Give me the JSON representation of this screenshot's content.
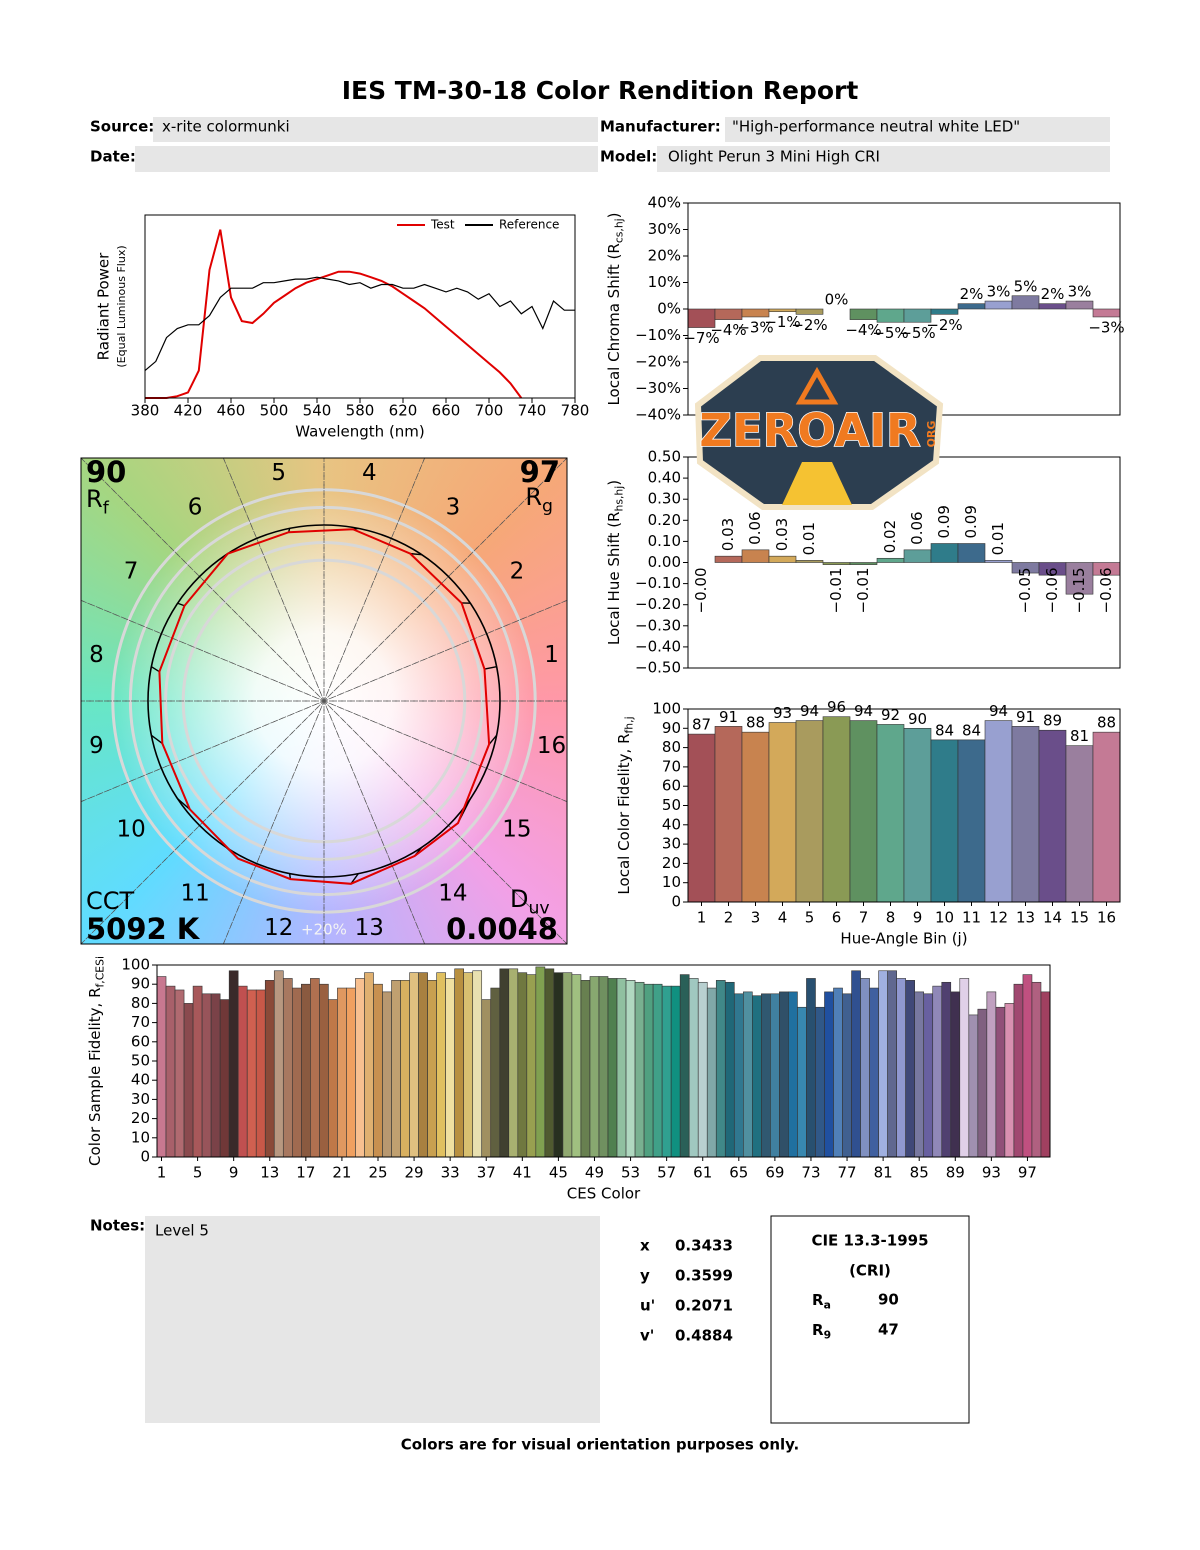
{
  "header": {
    "title": "IES TM-30-18 Color Rendition Report",
    "source_label": "Source:",
    "source": "x-rite colormunki",
    "manufacturer_label": "Manufacturer:",
    "manufacturer": "\"High-performance neutral white LED\"",
    "date_label": "Date:",
    "model_label": "Model:",
    "model": "Olight Perun 3 Mini High CRI"
  },
  "chart_data": [
    {
      "type": "line",
      "x_label": "Wavelength (nm)",
      "y_label": "Radiant Power",
      "y_sublabel": "(Equal Luminous Flux)",
      "x": [
        380,
        390,
        400,
        410,
        420,
        430,
        440,
        450,
        460,
        470,
        480,
        490,
        500,
        510,
        520,
        530,
        540,
        550,
        560,
        570,
        580,
        590,
        600,
        610,
        620,
        630,
        640,
        650,
        660,
        670,
        680,
        690,
        700,
        710,
        720,
        730,
        740,
        750,
        760,
        770,
        780
      ],
      "xlim": [
        380,
        780
      ],
      "xticks": [
        380,
        420,
        460,
        500,
        540,
        580,
        620,
        660,
        700,
        740,
        780
      ],
      "ylim": [
        0,
        1
      ],
      "legend": "upper right",
      "series": [
        {
          "name": "Test",
          "color": "#e00000",
          "values": [
            0,
            0,
            0,
            0.01,
            0.03,
            0.15,
            0.7,
            0.92,
            0.55,
            0.42,
            0.41,
            0.46,
            0.52,
            0.56,
            0.6,
            0.63,
            0.65,
            0.67,
            0.69,
            0.69,
            0.68,
            0.66,
            0.64,
            0.61,
            0.57,
            0.53,
            0.49,
            0.44,
            0.39,
            0.34,
            0.29,
            0.24,
            0.19,
            0.14,
            0.08,
            0,
            null,
            null,
            null,
            null,
            null
          ]
        },
        {
          "name": "Reference",
          "color": "#000000",
          "values": [
            0.15,
            0.2,
            0.33,
            0.38,
            0.4,
            0.4,
            0.45,
            0.55,
            0.6,
            0.6,
            0.6,
            0.63,
            0.63,
            0.64,
            0.65,
            0.65,
            0.66,
            0.65,
            0.64,
            0.62,
            0.63,
            0.6,
            0.62,
            0.62,
            0.6,
            0.6,
            0.62,
            0.6,
            0.58,
            0.6,
            0.58,
            0.54,
            0.57,
            0.5,
            0.53,
            0.46,
            0.5,
            0.38,
            0.53,
            0.48,
            0.48
          ]
        }
      ]
    },
    {
      "type": "color-vector",
      "rf": 90,
      "rf_symbol": {
        "text": "R",
        "subscript": "f"
      },
      "rg": 97,
      "rg_symbol": {
        "text": "R",
        "subscript": "g"
      },
      "cct_label": "CCT",
      "cct": {
        "value": 5092,
        "label": "5092 K"
      },
      "duv_label": {
        "text": "D",
        "subscript": "uv"
      },
      "duv": 0.0048,
      "ring_label": "+20%",
      "bin_labels": [
        "1",
        "2",
        "3",
        "4",
        "5",
        "6",
        "7",
        "8",
        "9",
        "10",
        "11",
        "12",
        "13",
        "14",
        "15",
        "16"
      ]
    },
    {
      "type": "bar",
      "y_label": {
        "text": "Local Chroma Shift (R",
        "subscript": "cs,hj",
        "suffix": ")"
      },
      "values": [
        -7,
        -4,
        -3,
        -1,
        -2,
        0,
        -4,
        -5,
        -5,
        -2,
        2,
        3,
        5,
        2,
        3,
        -3
      ],
      "value_labels": [
        "−7%",
        "−4%",
        "−3%",
        "−1%",
        "−2%",
        "0%",
        "−4%",
        "−5%",
        "−5%",
        "−2%",
        "2%",
        "3%",
        "5%",
        "2%",
        "3%",
        "−3%"
      ],
      "colors": [
        "#a35057",
        "#b5685a",
        "#c8834f",
        "#d3a95a",
        "#a99b5e",
        "#8a9a55",
        "#5f9160",
        "#5fa78c",
        "#5d9e99",
        "#2f7c8a",
        "#3d6a8c",
        "#98a0d0",
        "#7e7aa0",
        "#6a4e8a",
        "#9a7f9e",
        "#c47a95"
      ],
      "ylim": [
        -40,
        40
      ],
      "yticks": [
        {
          "value": 40,
          "label": "40%"
        },
        {
          "value": 30,
          "label": "30%"
        },
        {
          "value": 20,
          "label": "20%"
        },
        {
          "value": 10,
          "label": "10%"
        },
        {
          "value": 0,
          "label": "0%"
        },
        {
          "value": -10,
          "label": "−10%"
        },
        {
          "value": -20,
          "label": "−20%"
        },
        {
          "value": -30,
          "label": "−30%"
        },
        {
          "value": -40,
          "label": "−40%"
        }
      ]
    },
    {
      "type": "bar",
      "y_label": {
        "text": "Local Hue Shift (R",
        "subscript": "hs,hj",
        "suffix": ")"
      },
      "values": [
        0,
        0.03,
        0.06,
        0.03,
        0.01,
        -0.01,
        -0.01,
        0.02,
        0.06,
        0.09,
        0.09,
        0.01,
        -0.05,
        -0.06,
        -0.15,
        -0.06
      ],
      "value_labels": [
        "−0.00",
        "0.03",
        "0.06",
        "0.03",
        "0.01",
        "−0.01",
        "−0.01",
        "0.02",
        "0.06",
        "0.09",
        "0.09",
        "0.01",
        "−0.05",
        "−0.06",
        "−0.15",
        "−0.06"
      ],
      "colors": [
        "#a35057",
        "#b5685a",
        "#c8834f",
        "#d3a95a",
        "#a99b5e",
        "#8a9a55",
        "#5f9160",
        "#5fa78c",
        "#5d9e99",
        "#2f7c8a",
        "#3d6a8c",
        "#98a0d0",
        "#7e7aa0",
        "#6a4e8a",
        "#9a7f9e",
        "#c47a95"
      ],
      "ylim": [
        -0.5,
        0.5
      ],
      "yticks": [
        {
          "value": 0.5,
          "label": "0.50"
        },
        {
          "value": 0.4,
          "label": "0.40"
        },
        {
          "value": 0.3,
          "label": "0.30"
        },
        {
          "value": 0.2,
          "label": "0.20"
        },
        {
          "value": 0.1,
          "label": "0.10"
        },
        {
          "value": 0,
          "label": "0.00"
        },
        {
          "value": -0.1,
          "label": "−0.10"
        },
        {
          "value": -0.2,
          "label": "−0.20"
        },
        {
          "value": -0.3,
          "label": "−0.30"
        },
        {
          "value": -0.4,
          "label": "−0.40"
        },
        {
          "value": -0.5,
          "label": "−0.50"
        }
      ]
    },
    {
      "type": "bar",
      "y_label": {
        "text": "Local Color Fidelity, R",
        "subscript": "fh,j"
      },
      "x_label": "Hue-Angle Bin (j)",
      "categories": [
        "1",
        "2",
        "3",
        "4",
        "5",
        "6",
        "7",
        "8",
        "9",
        "10",
        "11",
        "12",
        "13",
        "14",
        "15",
        "16"
      ],
      "values": [
        87,
        91,
        88,
        93,
        94,
        96,
        94,
        92,
        90,
        84,
        84,
        94,
        91,
        89,
        81,
        88
      ],
      "colors": [
        "#a35057",
        "#b5685a",
        "#c8834f",
        "#d3a95a",
        "#a99b5e",
        "#8a9a55",
        "#5f9160",
        "#5fa78c",
        "#5d9e99",
        "#2f7c8a",
        "#3d6a8c",
        "#98a0d0",
        "#7e7aa0",
        "#6a4e8a",
        "#9a7f9e",
        "#c47a95"
      ],
      "ylim": [
        0,
        100
      ],
      "yticks": [
        0,
        10,
        20,
        30,
        40,
        50,
        60,
        70,
        80,
        90,
        100
      ]
    },
    {
      "type": "bar",
      "y_label": {
        "text": "Color Sample Fidelity, R",
        "subscript": "f,CESi"
      },
      "x_label": "CES Color",
      "categories": [
        "1",
        null,
        null,
        null,
        "5",
        null,
        null,
        null,
        "9",
        null,
        null,
        null,
        "13",
        null,
        null,
        null,
        "17",
        null,
        null,
        null,
        "21",
        null,
        null,
        null,
        "25",
        null,
        null,
        null,
        "29",
        null,
        null,
        null,
        "33",
        null,
        null,
        null,
        "37",
        null,
        null,
        null,
        "41",
        null,
        null,
        null,
        "45",
        null,
        null,
        null,
        "49",
        null,
        null,
        null,
        "53",
        null,
        null,
        null,
        "57",
        null,
        null,
        null,
        "61",
        null,
        null,
        null,
        "65",
        null,
        null,
        null,
        "69",
        null,
        null,
        null,
        "73",
        null,
        null,
        null,
        "77",
        null,
        null,
        null,
        "81",
        null,
        null,
        null,
        "85",
        null,
        null,
        null,
        "89",
        null,
        null,
        null,
        "93",
        null,
        null,
        null,
        "97",
        null,
        null
      ],
      "values": [
        94,
        89,
        87,
        80,
        89,
        85,
        85,
        82,
        97,
        89,
        87,
        87,
        92,
        97,
        93,
        88,
        90,
        93,
        90,
        82,
        88,
        88,
        93,
        96,
        90,
        86,
        92,
        92,
        96,
        96,
        92,
        96,
        93,
        98,
        96,
        97,
        82,
        88,
        98,
        98,
        96,
        95,
        99,
        98,
        96,
        96,
        95,
        92,
        94,
        94,
        93,
        93,
        92,
        91,
        90,
        90,
        89,
        89,
        95,
        93,
        91,
        88,
        92,
        91,
        85,
        86,
        84,
        85,
        85,
        86,
        86,
        78,
        93,
        78,
        86,
        88,
        85,
        97,
        93,
        88,
        97,
        97,
        93,
        92,
        86,
        85,
        89,
        91,
        86,
        93,
        74,
        77,
        86,
        78,
        80,
        90,
        95,
        91,
        86
      ],
      "colors": [
        "#c87890",
        "#a8606a",
        "#b06a70",
        "#8a4a4e",
        "#a8585a",
        "#98545a",
        "#7a4248",
        "#703838",
        "#3a2a2a",
        "#c05050",
        "#d06050",
        "#c85848",
        "#8a4a38",
        "#b89880",
        "#a87860",
        "#a06a50",
        "#8a5a40",
        "#b07050",
        "#9a6040",
        "#c07848",
        "#e09860",
        "#f0a060",
        "#f8c090",
        "#e0b070",
        "#c89050",
        "#b89870",
        "#c0a070",
        "#d8b060",
        "#e0c080",
        "#a88040",
        "#c8a050",
        "#e0c060",
        "#f0e0a0",
        "#b89040",
        "#d8c070",
        "#e8e0b0",
        "#a09060",
        "#606040",
        "#404030",
        "#a8b070",
        "#707840",
        "#98a050",
        "#80a050",
        "#505a30",
        "#283020",
        "#90a870",
        "#a0c080",
        "#688050",
        "#88a870",
        "#709060",
        "#508050",
        "#90c0a0",
        "#b0d8c0",
        "#78b090",
        "#50a080",
        "#40a088",
        "#30a090",
        "#109080",
        "#2a6058",
        "#a0c8c0",
        "#b8d0d0",
        "#80a8a8",
        "#408888",
        "#206878",
        "#307890",
        "#5090a0",
        "#207080",
        "#305870",
        "#4080a0",
        "#305068",
        "#2070a0",
        "#3888b0",
        "#285070",
        "#305888",
        "#2050a0",
        "#5080b8",
        "#406090",
        "#305090",
        "#8090c0",
        "#4060a0",
        "#a0b0e0",
        "#606890",
        "#9098d0",
        "#404878",
        "#7878a0",
        "#6860a0",
        "#9088b8",
        "#504070",
        "#403050",
        "#e0d0e8",
        "#a090b0",
        "#806080",
        "#c0a0c0",
        "#905078",
        "#d890b0",
        "#a04870",
        "#c05080",
        "#b06080",
        "#a04060"
      ],
      "ylim": [
        0,
        100
      ],
      "yticks": [
        0,
        10,
        20,
        30,
        40,
        50,
        60,
        70,
        80,
        90,
        100
      ]
    }
  ],
  "logo": {
    "text": "ZEROAIR",
    "suffix": "ORG"
  },
  "notes": {
    "label": "Notes:",
    "text": "Level 5"
  },
  "chromaticity": [
    {
      "label": "x",
      "value": "0.3433"
    },
    {
      "label": "y",
      "value": "0.3599"
    },
    {
      "label": "u'",
      "value": "0.2071"
    },
    {
      "label": "v'",
      "value": "0.4884"
    }
  ],
  "cri": {
    "title": "CIE 13.3-1995",
    "subtitle": "(CRI)",
    "ra": {
      "text": "R",
      "subscript": "a",
      "value": 90
    },
    "r9": {
      "text": "R",
      "subscript": "9",
      "value": 47
    }
  },
  "footer": "Colors are for visual orientation purposes only."
}
